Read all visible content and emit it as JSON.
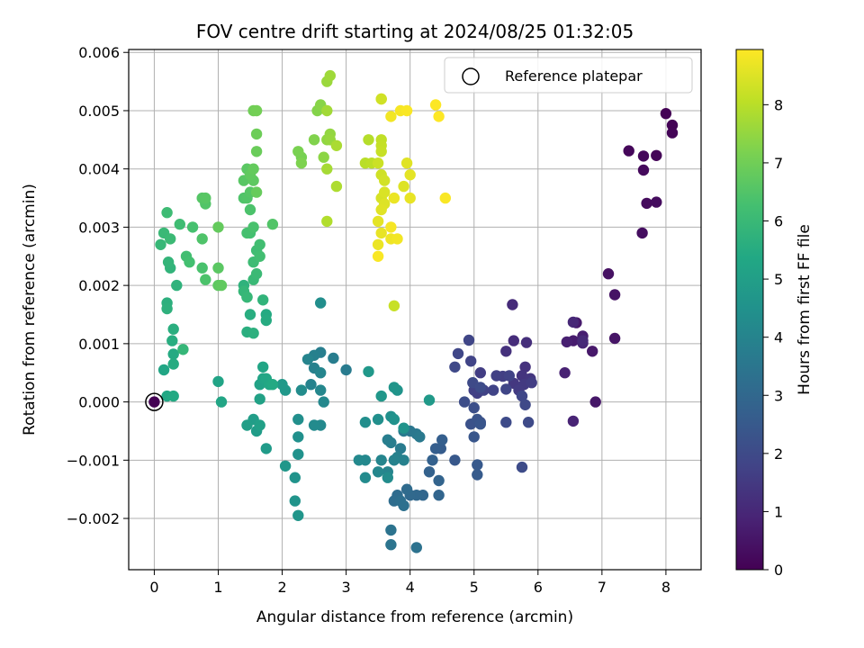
{
  "chart_data": {
    "type": "scatter",
    "title": "FOV centre drift starting at 2024/08/25 01:32:05",
    "xlabel": "Angular distance from reference (arcmin)",
    "ylabel": "Rotation from reference (arcmin)",
    "xlim": [
      -0.4,
      8.55
    ],
    "ylim": [
      -0.00288,
      0.00605
    ],
    "xticks": [
      0,
      1,
      2,
      3,
      4,
      5,
      6,
      7,
      8
    ],
    "xtick_labels": [
      "0",
      "1",
      "2",
      "3",
      "4",
      "5",
      "6",
      "7",
      "8"
    ],
    "yticks": [
      -0.002,
      -0.001,
      0.0,
      0.001,
      0.002,
      0.003,
      0.004,
      0.005,
      0.006
    ],
    "ytick_labels": [
      "−0.002",
      "−0.001",
      "0.000",
      "0.001",
      "0.002",
      "0.003",
      "0.004",
      "0.005",
      "0.006"
    ],
    "grid": true,
    "legend": {
      "position": "top-right",
      "entries": [
        "Reference platepar"
      ]
    },
    "colorbar": {
      "label": "Hours from first FF file",
      "colormap": "viridis",
      "range": [
        0,
        8.95
      ],
      "ticks": [
        0,
        1,
        2,
        3,
        4,
        5,
        6,
        7,
        8
      ],
      "tick_labels": [
        "0",
        "1",
        "2",
        "3",
        "4",
        "5",
        "6",
        "7",
        "8"
      ]
    },
    "reference_point": {
      "x": 0,
      "y": 0
    },
    "points": [
      [
        8.0,
        0.00495,
        0.03
      ],
      [
        8.1,
        0.00475,
        0.05
      ],
      [
        8.1,
        0.00462,
        0.08
      ],
      [
        7.85,
        0.00423,
        0.12
      ],
      [
        7.42,
        0.00431,
        0.15
      ],
      [
        7.65,
        0.00422,
        0.18
      ],
      [
        7.65,
        0.00398,
        0.22
      ],
      [
        7.7,
        0.00341,
        0.25
      ],
      [
        7.85,
        0.00343,
        0.28
      ],
      [
        7.63,
        0.0029,
        0.32
      ],
      [
        7.1,
        0.0022,
        0.4
      ],
      [
        7.2,
        0.00184,
        0.45
      ],
      [
        7.2,
        0.00109,
        0.5
      ],
      [
        6.9,
        0.0,
        0.55
      ],
      [
        6.85,
        0.00087,
        0.6
      ],
      [
        6.6,
        0.00136,
        0.65
      ],
      [
        6.55,
        0.00105,
        0.7
      ],
      [
        6.7,
        0.00113,
        0.75
      ],
      [
        6.45,
        0.00103,
        0.8
      ],
      [
        6.42,
        0.0005,
        0.85
      ],
      [
        6.55,
        -0.00033,
        0.9
      ],
      [
        6.7,
        0.00101,
        0.95
      ],
      [
        6.55,
        0.00137,
        1.0
      ],
      [
        6.7,
        0.00105,
        1.05
      ],
      [
        5.6,
        0.00167,
        1.1
      ],
      [
        5.62,
        0.00105,
        1.15
      ],
      [
        5.82,
        0.00102,
        1.2
      ],
      [
        5.5,
        0.00087,
        1.25
      ],
      [
        5.8,
        0.0006,
        1.3
      ],
      [
        5.75,
        0.00045,
        1.35
      ],
      [
        5.88,
        0.0004,
        1.4
      ],
      [
        5.62,
        0.00032,
        1.45
      ],
      [
        5.78,
        0.0003,
        1.5
      ],
      [
        5.7,
        0.0002,
        1.55
      ],
      [
        5.9,
        0.00033,
        1.6
      ],
      [
        5.45,
        0.00044,
        1.65
      ],
      [
        5.35,
        0.00045,
        1.7
      ],
      [
        5.55,
        0.00045,
        1.75
      ],
      [
        5.3,
        0.0002,
        1.8
      ],
      [
        5.5,
        0.00022,
        1.85
      ],
      [
        5.75,
        0.0001,
        1.9
      ],
      [
        5.8,
        -5e-05,
        1.95
      ],
      [
        5.85,
        -0.00035,
        2.0
      ],
      [
        5.5,
        -0.00035,
        2.02
      ],
      [
        5.75,
        -0.00112,
        2.05
      ],
      [
        5.1,
        0.0005,
        1.6
      ],
      [
        5.05,
        0.00015,
        1.65
      ],
      [
        5.0,
        0.0002,
        1.7
      ],
      [
        5.15,
        0.0002,
        1.75
      ],
      [
        4.95,
        0.0007,
        1.8
      ],
      [
        4.92,
        0.00106,
        1.85
      ],
      [
        4.75,
        0.00083,
        1.9
      ],
      [
        4.7,
        0.0006,
        1.95
      ],
      [
        4.98,
        0.00033,
        2.0
      ],
      [
        5.1,
        0.00025,
        2.05
      ],
      [
        4.85,
        0.0,
        2.1
      ],
      [
        5.0,
        -0.0001,
        2.15
      ],
      [
        5.1,
        -0.00035,
        2.2
      ],
      [
        4.95,
        -0.00038,
        2.25
      ],
      [
        5.05,
        -0.0003,
        2.3
      ],
      [
        5.1,
        -0.00038,
        2.35
      ],
      [
        5.0,
        -0.0006,
        2.4
      ],
      [
        4.7,
        -0.001,
        2.45
      ],
      [
        5.05,
        -0.00108,
        2.5
      ],
      [
        5.05,
        -0.00125,
        2.55
      ],
      [
        4.48,
        -0.0008,
        2.6
      ],
      [
        4.4,
        -0.0008,
        2.65
      ],
      [
        4.5,
        -0.00065,
        2.7
      ],
      [
        4.35,
        -0.001,
        2.75
      ],
      [
        4.3,
        -0.0012,
        2.8
      ],
      [
        4.45,
        -0.00135,
        2.85
      ],
      [
        4.45,
        -0.0016,
        2.9
      ],
      [
        4.2,
        -0.0016,
        2.95
      ],
      [
        4.1,
        -0.0016,
        3.0
      ],
      [
        4.0,
        -0.0016,
        3.05
      ],
      [
        3.95,
        -0.0015,
        3.1
      ],
      [
        3.8,
        -0.0016,
        3.15
      ],
      [
        3.75,
        -0.0017,
        3.2
      ],
      [
        3.85,
        -0.0017,
        3.25
      ],
      [
        3.9,
        -0.00178,
        3.3
      ],
      [
        4.1,
        -0.0025,
        3.35
      ],
      [
        3.7,
        -0.0022,
        3.4
      ],
      [
        3.7,
        -0.00245,
        3.45
      ],
      [
        4.0,
        -0.0005,
        3.5
      ],
      [
        4.1,
        -0.00055,
        3.55
      ],
      [
        4.15,
        -0.0006,
        3.6
      ],
      [
        3.9,
        -0.0005,
        3.65
      ],
      [
        3.85,
        -0.0008,
        3.7
      ],
      [
        3.7,
        -0.0007,
        3.75
      ],
      [
        3.65,
        -0.00065,
        3.8
      ],
      [
        3.8,
        -0.00095,
        3.85
      ],
      [
        3.9,
        -0.001,
        3.9
      ],
      [
        3.75,
        -0.001,
        3.95
      ],
      [
        3.65,
        -0.0012,
        4.0
      ],
      [
        3.55,
        -0.001,
        4.05
      ],
      [
        3.5,
        -0.0012,
        4.1
      ],
      [
        3.3,
        -0.001,
        4.15
      ],
      [
        3.2,
        -0.001,
        4.2
      ],
      [
        3.3,
        -0.0013,
        4.25
      ],
      [
        3.65,
        -0.0013,
        4.3
      ],
      [
        3.3,
        -0.00035,
        4.35
      ],
      [
        3.5,
        -0.0003,
        4.4
      ],
      [
        3.7,
        -0.00025,
        4.45
      ],
      [
        3.75,
        -0.0003,
        4.5
      ],
      [
        3.9,
        -0.00045,
        4.55
      ],
      [
        3.8,
        0.0002,
        4.6
      ],
      [
        3.75,
        0.00025,
        4.65
      ],
      [
        3.55,
        0.0001,
        4.7
      ],
      [
        3.35,
        0.00052,
        4.75
      ],
      [
        4.3,
        3e-05,
        4.8
      ],
      [
        3.0,
        0.00055,
        3.7
      ],
      [
        2.8,
        0.00075,
        3.75
      ],
      [
        2.6,
        0.00085,
        3.8
      ],
      [
        2.5,
        0.0008,
        3.85
      ],
      [
        2.5,
        0.00058,
        3.9
      ],
      [
        2.45,
        0.0003,
        3.95
      ],
      [
        2.4,
        0.00073,
        4.0
      ],
      [
        2.6,
        0.0005,
        4.05
      ],
      [
        2.6,
        0.0002,
        4.1
      ],
      [
        2.65,
        0.0,
        4.15
      ],
      [
        2.6,
        -0.0004,
        4.2
      ],
      [
        2.5,
        -0.0004,
        4.25
      ],
      [
        2.3,
        0.0002,
        4.3
      ],
      [
        2.6,
        0.0017,
        4.35
      ],
      [
        2.25,
        -0.0003,
        4.4
      ],
      [
        2.25,
        -0.0006,
        4.45
      ],
      [
        2.25,
        -0.0009,
        4.5
      ],
      [
        2.2,
        -0.0013,
        4.55
      ],
      [
        2.2,
        -0.0017,
        4.6
      ],
      [
        2.25,
        -0.00195,
        4.65
      ],
      [
        2.05,
        -0.0011,
        4.7
      ],
      [
        2.05,
        0.0002,
        4.75
      ],
      [
        2.0,
        0.0003,
        4.8
      ],
      [
        1.75,
        -0.0008,
        4.85
      ],
      [
        1.6,
        -0.0005,
        4.9
      ],
      [
        1.55,
        -0.0003,
        4.95
      ],
      [
        1.45,
        -0.0004,
        5.0
      ],
      [
        1.65,
        -0.0004,
        5.05
      ],
      [
        1.65,
        5e-05,
        5.1
      ],
      [
        1.65,
        0.0003,
        5.15
      ],
      [
        1.7,
        0.0004,
        5.2
      ],
      [
        1.7,
        0.0006,
        5.25
      ],
      [
        1.75,
        0.0004,
        5.3
      ],
      [
        1.8,
        0.0003,
        5.35
      ],
      [
        1.85,
        0.0003,
        5.4
      ],
      [
        1.75,
        0.0015,
        5.45
      ],
      [
        1.75,
        0.0014,
        5.5
      ],
      [
        1.5,
        0.0015,
        5.55
      ],
      [
        1.45,
        0.0012,
        5.6
      ],
      [
        1.55,
        0.00118,
        5.65
      ],
      [
        1.45,
        0.0018,
        5.7
      ],
      [
        1.4,
        0.002,
        5.75
      ],
      [
        1.7,
        0.00175,
        5.8
      ],
      [
        1.0,
        0.00035,
        5.2
      ],
      [
        1.05,
        0.0,
        5.25
      ],
      [
        0.15,
        0.00055,
        5.3
      ],
      [
        0.2,
        0.0001,
        5.35
      ],
      [
        0.3,
        0.0001,
        5.4
      ],
      [
        0.3,
        0.00082,
        5.45
      ],
      [
        0.3,
        0.00065,
        5.5
      ],
      [
        0.28,
        0.00105,
        5.55
      ],
      [
        0.3,
        0.00125,
        5.6
      ],
      [
        0.2,
        0.0017,
        5.65
      ],
      [
        0.2,
        0.0016,
        5.7
      ],
      [
        0.35,
        0.002,
        5.75
      ],
      [
        0.25,
        0.0023,
        5.8
      ],
      [
        0.22,
        0.0024,
        5.85
      ],
      [
        0.45,
        0.0009,
        5.9
      ],
      [
        0.1,
        0.0027,
        5.95
      ],
      [
        0.15,
        0.0029,
        6.0
      ],
      [
        0.25,
        0.0028,
        6.05
      ],
      [
        0.2,
        0.00325,
        6.1
      ],
      [
        0.4,
        0.00305,
        6.15
      ],
      [
        0.5,
        0.0025,
        6.2
      ],
      [
        0.55,
        0.0024,
        6.25
      ],
      [
        0.6,
        0.003,
        6.3
      ],
      [
        0.75,
        0.0023,
        6.35
      ],
      [
        0.8,
        0.0021,
        6.4
      ],
      [
        0.75,
        0.0028,
        6.45
      ],
      [
        0.8,
        0.0034,
        6.5
      ],
      [
        0.75,
        0.0035,
        6.55
      ],
      [
        0.8,
        0.0035,
        6.6
      ],
      [
        1.0,
        0.0023,
        6.65
      ],
      [
        1.0,
        0.002,
        6.7
      ],
      [
        1.05,
        0.002,
        6.75
      ],
      [
        1.0,
        0.003,
        6.8
      ],
      [
        1.4,
        0.0019,
        5.9
      ],
      [
        1.45,
        0.0018,
        5.95
      ],
      [
        1.55,
        0.0021,
        6.0
      ],
      [
        1.6,
        0.0022,
        6.05
      ],
      [
        1.55,
        0.0024,
        6.1
      ],
      [
        1.6,
        0.0026,
        6.15
      ],
      [
        1.65,
        0.0027,
        6.2
      ],
      [
        1.5,
        0.0029,
        6.25
      ],
      [
        1.45,
        0.0029,
        6.3
      ],
      [
        1.55,
        0.003,
        6.35
      ],
      [
        1.5,
        0.0033,
        6.4
      ],
      [
        1.4,
        0.0035,
        6.45
      ],
      [
        1.45,
        0.0035,
        6.5
      ],
      [
        1.5,
        0.0036,
        6.55
      ],
      [
        1.4,
        0.0038,
        6.6
      ],
      [
        1.45,
        0.004,
        6.65
      ],
      [
        1.55,
        0.0038,
        6.7
      ],
      [
        1.5,
        0.0039,
        6.75
      ],
      [
        1.55,
        0.004,
        6.8
      ],
      [
        1.6,
        0.0036,
        6.85
      ],
      [
        1.6,
        0.0043,
        6.9
      ],
      [
        1.6,
        0.0046,
        6.95
      ],
      [
        1.55,
        0.005,
        7.0
      ],
      [
        1.6,
        0.005,
        7.05
      ],
      [
        1.65,
        0.0025,
        6.2
      ],
      [
        1.85,
        0.00305,
        6.5
      ],
      [
        2.3,
        0.0042,
        7.1
      ],
      [
        2.25,
        0.0043,
        7.15
      ],
      [
        2.3,
        0.0041,
        7.2
      ],
      [
        2.5,
        0.0045,
        7.25
      ],
      [
        2.55,
        0.005,
        7.3
      ],
      [
        2.6,
        0.0051,
        7.35
      ],
      [
        2.65,
        0.0042,
        7.4
      ],
      [
        2.7,
        0.0045,
        7.45
      ],
      [
        2.75,
        0.0046,
        7.5
      ],
      [
        2.75,
        0.0045,
        7.55
      ],
      [
        2.7,
        0.0055,
        7.6
      ],
      [
        2.75,
        0.0056,
        7.65
      ],
      [
        2.7,
        0.005,
        7.7
      ],
      [
        2.7,
        0.004,
        7.75
      ],
      [
        2.85,
        0.0044,
        7.8
      ],
      [
        2.85,
        0.0037,
        7.85
      ],
      [
        2.7,
        0.0031,
        7.9
      ],
      [
        3.35,
        0.0045,
        7.95
      ],
      [
        3.3,
        0.0041,
        8.0
      ],
      [
        3.4,
        0.0041,
        8.05
      ],
      [
        3.55,
        0.0045,
        8.1
      ],
      [
        3.55,
        0.0044,
        8.15
      ],
      [
        3.55,
        0.0043,
        8.2
      ],
      [
        3.5,
        0.0041,
        8.25
      ],
      [
        3.55,
        0.0039,
        8.3
      ],
      [
        3.6,
        0.0038,
        8.35
      ],
      [
        3.55,
        0.0035,
        8.4
      ],
      [
        3.6,
        0.0036,
        8.45
      ],
      [
        3.6,
        0.0034,
        8.5
      ],
      [
        3.55,
        0.0033,
        8.55
      ],
      [
        3.5,
        0.0031,
        8.6
      ],
      [
        3.55,
        0.0029,
        8.65
      ],
      [
        3.5,
        0.0027,
        8.7
      ],
      [
        3.7,
        0.0028,
        8.75
      ],
      [
        3.8,
        0.0028,
        8.8
      ],
      [
        3.7,
        0.003,
        8.85
      ],
      [
        3.5,
        0.0025,
        8.9
      ],
      [
        3.9,
        0.0037,
        8.5
      ],
      [
        3.95,
        0.0041,
        8.55
      ],
      [
        4.0,
        0.0039,
        8.6
      ],
      [
        4.0,
        0.0035,
        8.65
      ],
      [
        3.75,
        0.0035,
        8.7
      ],
      [
        3.55,
        0.0052,
        8.75
      ],
      [
        3.7,
        0.0049,
        8.8
      ],
      [
        3.85,
        0.005,
        8.85
      ],
      [
        3.95,
        0.005,
        8.9
      ],
      [
        4.4,
        0.0051,
        8.93
      ],
      [
        4.45,
        0.0049,
        8.95
      ],
      [
        4.55,
        0.0035,
        8.9
      ],
      [
        3.75,
        0.00165,
        8.2
      ],
      [
        3.55,
        0.0052,
        8.3
      ]
    ]
  }
}
